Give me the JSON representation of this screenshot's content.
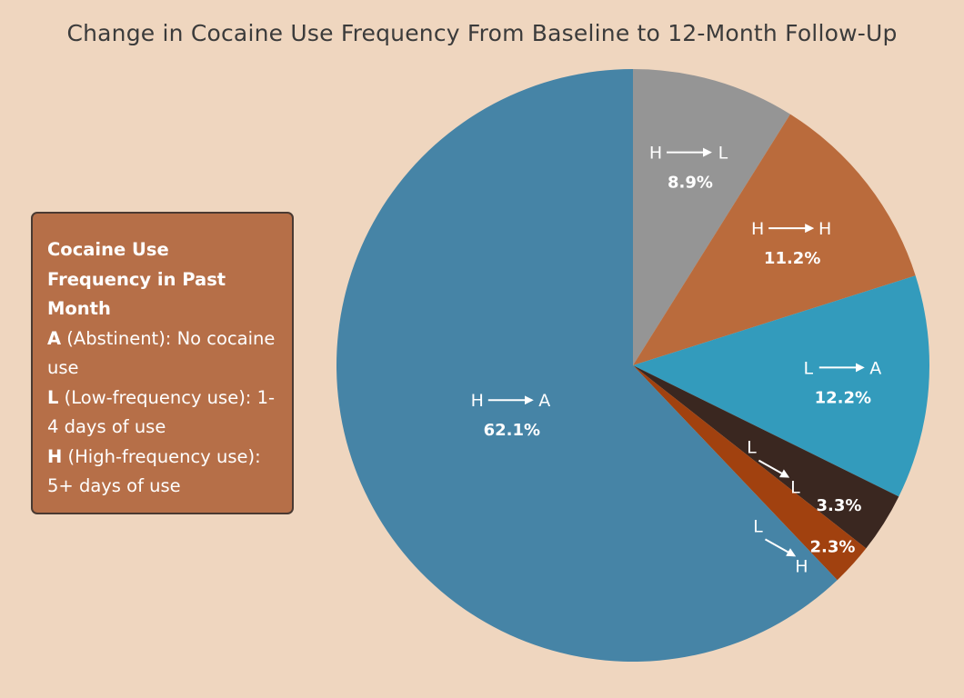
{
  "chart_data": {
    "type": "pie",
    "title": "Change in Cocaine Use Frequency From Baseline to 12-Month Follow-Up",
    "slices": [
      {
        "from": "H",
        "to": "L",
        "value": 8.9,
        "value_label": "8.9%",
        "color": "#959595"
      },
      {
        "from": "H",
        "to": "H",
        "value": 11.2,
        "value_label": "11.2%",
        "color": "#ba6b3c"
      },
      {
        "from": "L",
        "to": "A",
        "value": 12.2,
        "value_label": "12.2%",
        "color": "#339bbc"
      },
      {
        "from": "L",
        "to": "L",
        "value": 3.3,
        "value_label": "3.3%",
        "color": "#3a2720"
      },
      {
        "from": "L",
        "to": "H",
        "value": 2.3,
        "value_label": "2.3%",
        "color": "#a1410f"
      },
      {
        "from": "H",
        "to": "A",
        "value": 62.1,
        "value_label": "62.1%",
        "color": "#4684a6"
      }
    ]
  },
  "legend": {
    "title": "Cocaine Use Frequency in Past Month",
    "items": [
      {
        "key": "A",
        "text": " (Abstinent): No cocaine use"
      },
      {
        "key": "L",
        "text": " (Low-frequency use): 1-4 days of use"
      },
      {
        "key": "H",
        "text": " (High-frequency use): 5+ days of use"
      }
    ]
  },
  "colors": {
    "background": "#efd6bf",
    "legend_background": "#b66f48",
    "legend_border": "#4a3a32",
    "title_text": "#3b3b3b"
  }
}
